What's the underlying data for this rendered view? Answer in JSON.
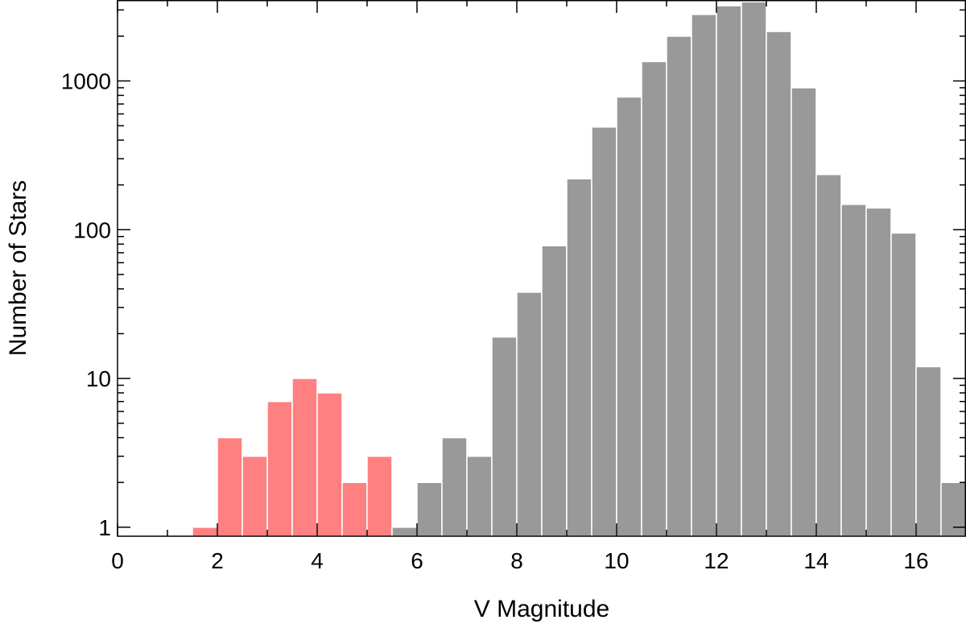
{
  "chart_data": {
    "type": "bar",
    "xlabel": "V Magnitude",
    "ylabel": "Number of Stars",
    "xlim": [
      0,
      17
    ],
    "ylim": [
      0.87,
      3500
    ],
    "yscale": "log",
    "bin_width": 0.5,
    "grid": false,
    "legend": "none",
    "x_ticks": [
      "0",
      "2",
      "4",
      "6",
      "8",
      "10",
      "12",
      "14",
      "16"
    ],
    "y_ticks": [
      "1",
      "10",
      "100",
      "1000"
    ],
    "colors": {
      "highlight": "#ff8080",
      "default": "#999999",
      "axis": "#000000",
      "edge": "#ffffff"
    },
    "series": [
      {
        "values": [
          {
            "x": 1.5,
            "y": 1,
            "group": "highlight"
          },
          {
            "x": 2.0,
            "y": 4,
            "group": "highlight"
          },
          {
            "x": 2.5,
            "y": 3,
            "group": "highlight"
          },
          {
            "x": 3.0,
            "y": 7,
            "group": "highlight"
          },
          {
            "x": 3.5,
            "y": 10,
            "group": "highlight"
          },
          {
            "x": 4.0,
            "y": 8,
            "group": "highlight"
          },
          {
            "x": 4.5,
            "y": 2,
            "group": "highlight"
          },
          {
            "x": 5.0,
            "y": 3,
            "group": "highlight"
          },
          {
            "x": 5.5,
            "y": 1,
            "group": "default"
          },
          {
            "x": 6.0,
            "y": 2,
            "group": "default"
          },
          {
            "x": 6.5,
            "y": 4,
            "group": "default"
          },
          {
            "x": 7.0,
            "y": 3,
            "group": "default"
          },
          {
            "x": 7.5,
            "y": 19,
            "group": "default"
          },
          {
            "x": 8.0,
            "y": 38,
            "group": "default"
          },
          {
            "x": 8.5,
            "y": 78,
            "group": "default"
          },
          {
            "x": 9.0,
            "y": 220,
            "group": "default"
          },
          {
            "x": 9.5,
            "y": 490,
            "group": "default"
          },
          {
            "x": 10.0,
            "y": 780,
            "group": "default"
          },
          {
            "x": 10.5,
            "y": 1350,
            "group": "default"
          },
          {
            "x": 11.0,
            "y": 2000,
            "group": "default"
          },
          {
            "x": 11.5,
            "y": 2800,
            "group": "default"
          },
          {
            "x": 12.0,
            "y": 3200,
            "group": "default"
          },
          {
            "x": 12.5,
            "y": 3400,
            "group": "default"
          },
          {
            "x": 13.0,
            "y": 2150,
            "group": "default"
          },
          {
            "x": 13.5,
            "y": 900,
            "group": "default"
          },
          {
            "x": 14.0,
            "y": 235,
            "group": "default"
          },
          {
            "x": 14.5,
            "y": 148,
            "group": "default"
          },
          {
            "x": 15.0,
            "y": 140,
            "group": "default"
          },
          {
            "x": 15.5,
            "y": 95,
            "group": "default"
          },
          {
            "x": 16.0,
            "y": 12,
            "group": "default"
          },
          {
            "x": 16.5,
            "y": 2,
            "group": "default"
          }
        ]
      }
    ]
  }
}
